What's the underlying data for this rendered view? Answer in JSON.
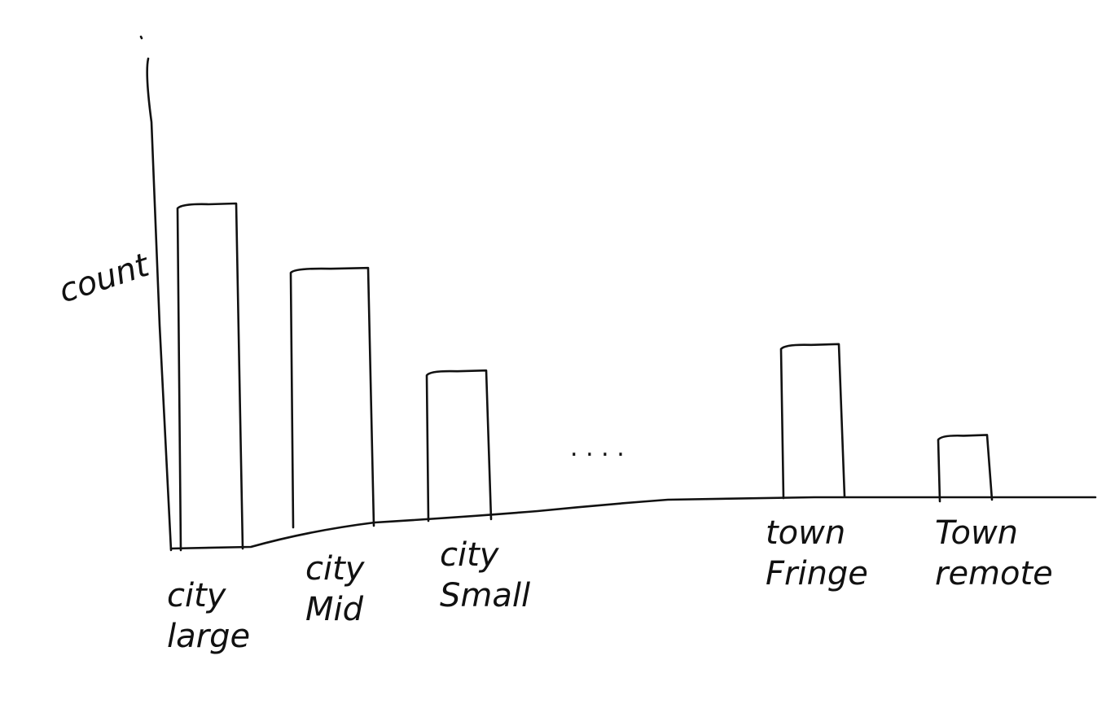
{
  "chart_data": {
    "type": "bar",
    "ylabel": "count",
    "categories": [
      [
        "city",
        "large"
      ],
      [
        "city",
        "Mid"
      ],
      [
        "city",
        "Small"
      ],
      [
        "town",
        "Fringe"
      ],
      [
        "Town",
        "remote"
      ]
    ],
    "values": [
      100,
      78,
      43,
      52,
      21
    ],
    "ylim": [
      0,
      140
    ],
    "gap_marker": ". . . .",
    "grid": false,
    "legend": "none",
    "colors": {
      "ink": "#111111",
      "background": "#ffffff"
    }
  }
}
